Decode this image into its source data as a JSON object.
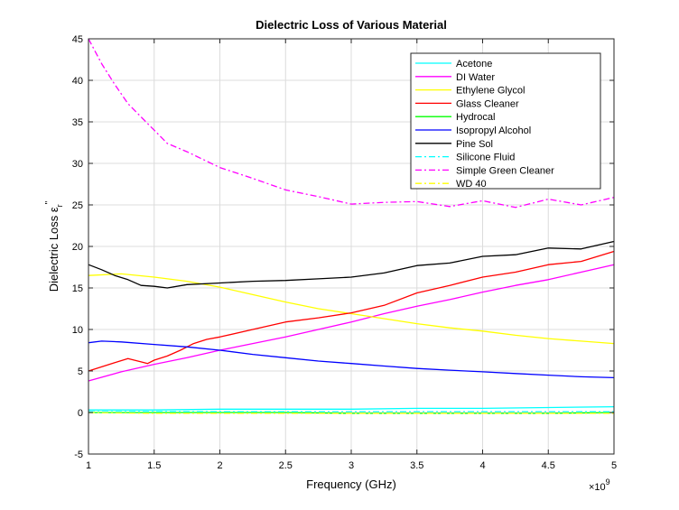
{
  "chart_data": {
    "type": "line",
    "title": "Dielectric Loss of Various Material",
    "xlabel": "Frequency (GHz)",
    "ylabel_main": "Dielectric Loss ε",
    "ylabel_sub": "r",
    "ylabel_sup": "\"",
    "x_exponent_base": "×10",
    "x_exponent_power": "9",
    "xlim": [
      1,
      5
    ],
    "ylim": [
      -5,
      45
    ],
    "x_ticks": [
      "1",
      "1.5",
      "2",
      "2.5",
      "3",
      "3.5",
      "4",
      "4.5",
      "5"
    ],
    "x_tick_values": [
      1,
      1.5,
      2,
      2.5,
      3,
      3.5,
      4,
      4.5,
      5
    ],
    "y_ticks": [
      "-5",
      "0",
      "5",
      "10",
      "15",
      "20",
      "25",
      "30",
      "35",
      "40",
      "45"
    ],
    "y_tick_values": [
      -5,
      0,
      5,
      10,
      15,
      20,
      25,
      30,
      35,
      40,
      45
    ],
    "grid": true,
    "legend_position": "top-right",
    "series": [
      {
        "name": "Acetone",
        "color": "#00ffff",
        "dash": "solid",
        "x": [
          1,
          1.5,
          2,
          2.5,
          3,
          3.5,
          4,
          4.5,
          5
        ],
        "y": [
          0.3,
          0.3,
          0.4,
          0.4,
          0.4,
          0.5,
          0.5,
          0.6,
          0.7
        ]
      },
      {
        "name": "DI Water",
        "color": "#ff00ff",
        "dash": "solid",
        "x": [
          1,
          1.25,
          1.5,
          1.75,
          2,
          2.25,
          2.5,
          2.75,
          3,
          3.25,
          3.5,
          3.75,
          4,
          4.25,
          4.5,
          4.75,
          5
        ],
        "y": [
          3.8,
          4.9,
          5.8,
          6.6,
          7.5,
          8.3,
          9.1,
          10.0,
          10.9,
          11.9,
          12.8,
          13.6,
          14.5,
          15.3,
          16.0,
          16.9,
          17.8
        ]
      },
      {
        "name": "Ethylene Glycol",
        "color": "#ffff00",
        "dash": "solid",
        "x": [
          1,
          1.25,
          1.5,
          1.75,
          2,
          2.25,
          2.5,
          2.75,
          3,
          3.25,
          3.5,
          3.75,
          4,
          4.25,
          4.5,
          4.75,
          5
        ],
        "y": [
          16.5,
          16.7,
          16.3,
          15.8,
          15.1,
          14.2,
          13.3,
          12.5,
          11.9,
          11.3,
          10.7,
          10.2,
          9.8,
          9.3,
          8.9,
          8.6,
          8.3
        ]
      },
      {
        "name": "Glass Cleaner",
        "color": "#ff0000",
        "dash": "solid",
        "x": [
          1,
          1.1,
          1.2,
          1.3,
          1.4,
          1.45,
          1.5,
          1.6,
          1.7,
          1.8,
          1.9,
          2,
          2.25,
          2.5,
          2.75,
          3,
          3.25,
          3.5,
          3.75,
          4,
          4.25,
          4.5,
          4.75,
          5
        ],
        "y": [
          5.0,
          5.5,
          6.0,
          6.5,
          6.1,
          5.9,
          6.3,
          6.8,
          7.5,
          8.3,
          8.8,
          9.1,
          10.0,
          10.9,
          11.4,
          12.0,
          12.9,
          14.4,
          15.3,
          16.3,
          16.9,
          17.8,
          18.2,
          19.4
        ]
      },
      {
        "name": "Hydrocal",
        "color": "#00ff00",
        "dash": "solid",
        "x": [
          1,
          1.5,
          2,
          2.5,
          3,
          3.5,
          4,
          4.5,
          5
        ],
        "y": [
          0.0,
          0.0,
          0.0,
          0.0,
          -0.1,
          -0.1,
          -0.1,
          -0.1,
          0.0
        ]
      },
      {
        "name": "Isopropyl Alcohol",
        "color": "#0000ff",
        "dash": "solid",
        "x": [
          1,
          1.1,
          1.25,
          1.5,
          1.75,
          2,
          2.25,
          2.5,
          2.75,
          3,
          3.25,
          3.5,
          3.75,
          4,
          4.25,
          4.5,
          4.75,
          5
        ],
        "y": [
          8.4,
          8.6,
          8.5,
          8.2,
          7.9,
          7.5,
          7.0,
          6.6,
          6.2,
          5.9,
          5.6,
          5.3,
          5.1,
          4.9,
          4.7,
          4.5,
          4.3,
          4.2
        ]
      },
      {
        "name": "Pine Sol",
        "color": "#000000",
        "dash": "solid",
        "x": [
          1,
          1.1,
          1.2,
          1.3,
          1.4,
          1.5,
          1.6,
          1.75,
          2,
          2.25,
          2.5,
          2.75,
          3,
          3.25,
          3.5,
          3.75,
          4,
          4.25,
          4.5,
          4.75,
          5
        ],
        "y": [
          17.8,
          17.2,
          16.5,
          16.0,
          15.3,
          15.2,
          15.0,
          15.4,
          15.6,
          15.8,
          15.9,
          16.1,
          16.3,
          16.8,
          17.7,
          18.0,
          18.8,
          19.0,
          19.8,
          19.7,
          20.6
        ]
      },
      {
        "name": "Silicone Fluid",
        "color": "#00ffff",
        "dash": "dashdot",
        "x": [
          1,
          1.5,
          2,
          2.5,
          3,
          3.5,
          4,
          4.5,
          5
        ],
        "y": [
          0.1,
          0.1,
          0.1,
          0.1,
          0.1,
          0.1,
          0.1,
          0.1,
          0.1
        ]
      },
      {
        "name": "Simple Green Cleaner",
        "color": "#ff00ff",
        "dash": "dashdot",
        "x": [
          1,
          1.1,
          1.2,
          1.3,
          1.4,
          1.5,
          1.6,
          1.75,
          2,
          2.25,
          2.5,
          2.75,
          3,
          3.25,
          3.5,
          3.75,
          4,
          4.25,
          4.5,
          4.75,
          5
        ],
        "y": [
          45,
          42.0,
          39.5,
          37.2,
          35.6,
          34.0,
          32.4,
          31.4,
          29.5,
          28.2,
          26.8,
          26.0,
          25.1,
          25.3,
          25.4,
          24.8,
          25.5,
          24.7,
          25.7,
          25.0,
          25.9
        ]
      },
      {
        "name": "WD 40",
        "color": "#ffff00",
        "dash": "dashdot",
        "x": [
          1,
          1.5,
          2,
          2.5,
          3,
          3.5,
          4,
          4.5,
          5
        ],
        "y": [
          0.0,
          -0.1,
          -0.1,
          -0.1,
          -0.1,
          -0.1,
          -0.1,
          -0.1,
          -0.1
        ]
      }
    ]
  }
}
